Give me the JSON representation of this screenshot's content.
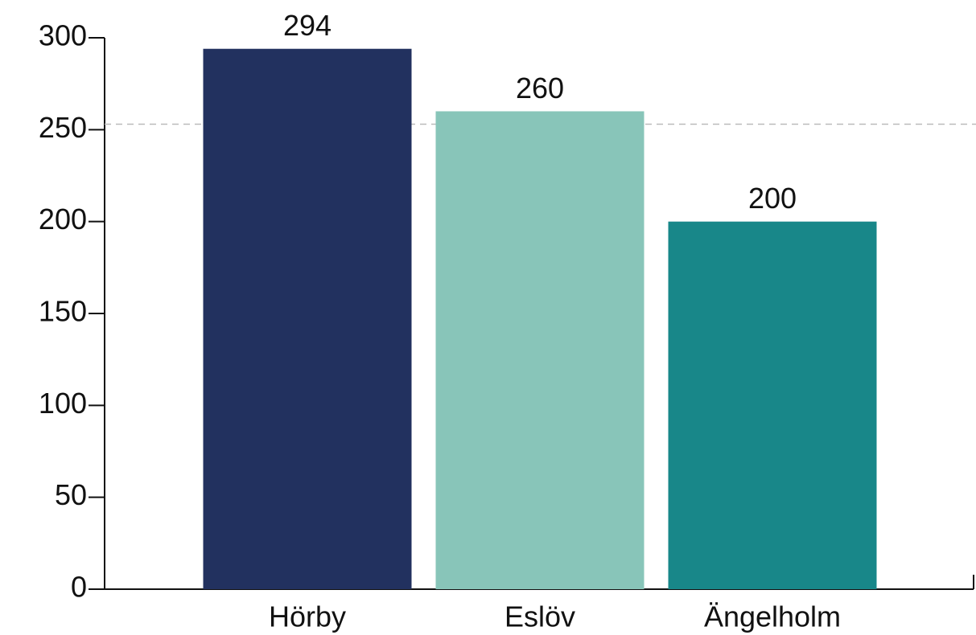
{
  "chart_data": {
    "type": "bar",
    "categories": [
      "Hörby",
      "Eslöv",
      "Ängelholm"
    ],
    "values": [
      294,
      260,
      200
    ],
    "colors": [
      "#22315f",
      "#88c5b9",
      "#188789"
    ],
    "ylim": [
      0,
      300
    ],
    "yticks": [
      0,
      50,
      100,
      150,
      200,
      250,
      300
    ],
    "reference_line": 253,
    "grid": false
  }
}
